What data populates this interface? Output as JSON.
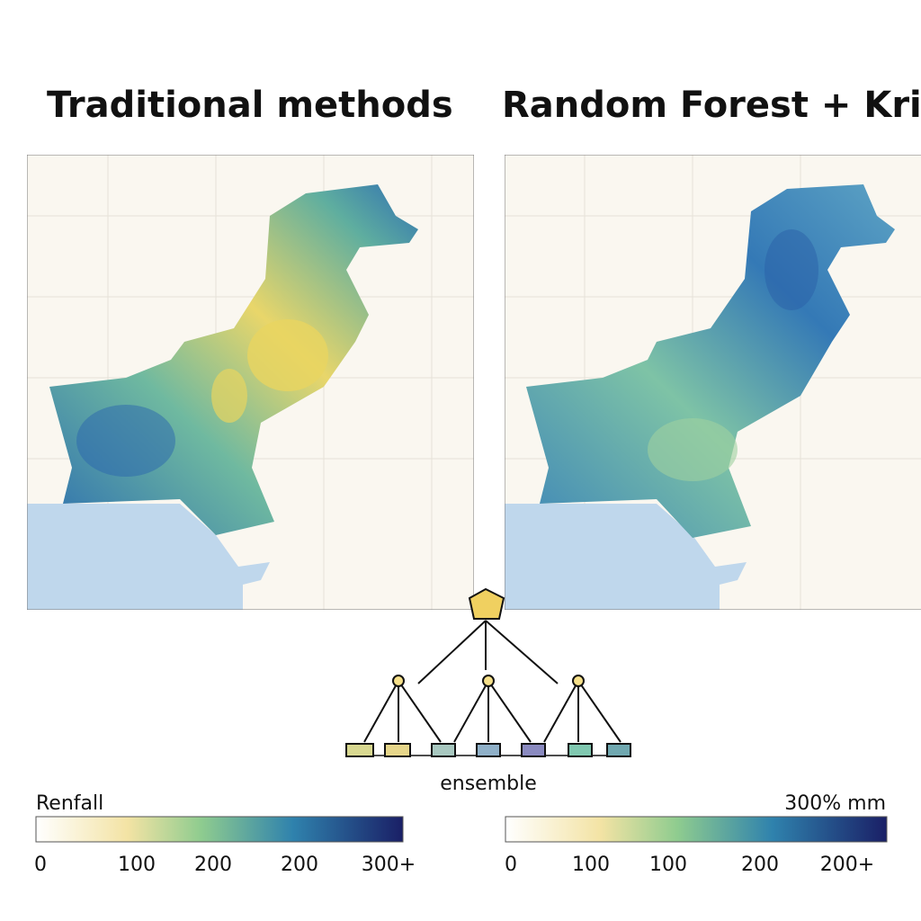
{
  "panels": [
    {
      "title": "Traditional methods"
    },
    {
      "title": "Random Forest + Kriging"
    }
  ],
  "diagram": {
    "label": "ensemble"
  },
  "colorbars": [
    {
      "label": "Renfall",
      "ticks": [
        "0",
        "100",
        "200",
        "200",
        "300+"
      ]
    },
    {
      "label": "300% mm",
      "ticks": [
        "0",
        "100",
        "100",
        "200",
        "200+"
      ]
    }
  ]
}
